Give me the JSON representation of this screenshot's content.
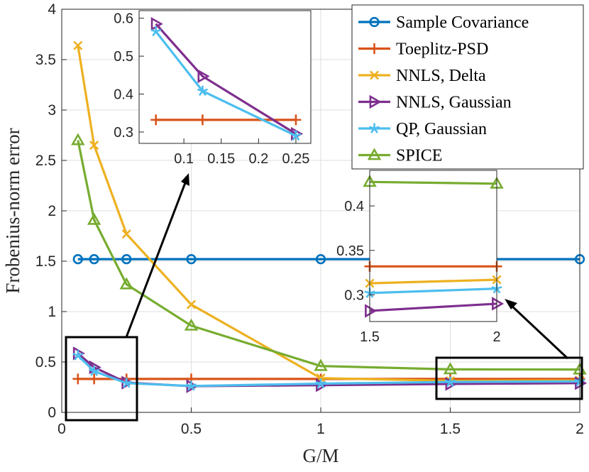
{
  "chart_data": {
    "type": "line",
    "xlabel": "G/M",
    "ylabel": "Frobenius-norm error",
    "xlim": [
      0,
      2
    ],
    "ylim": [
      0,
      4
    ],
    "xticks": [
      "0",
      "0.5",
      "1",
      "1.5",
      "2"
    ],
    "yticks": [
      "0",
      "0.5",
      "1",
      "1.5",
      "2",
      "2.5",
      "3",
      "3.5",
      "4"
    ],
    "grid": true,
    "legend_position": "top-right",
    "x": [
      0.0625,
      0.125,
      0.25,
      0.5,
      1,
      1.5,
      2
    ],
    "series": [
      {
        "name": "Sample Covariance",
        "color": "#0072BD",
        "marker": "circle",
        "values": [
          1.52,
          1.52,
          1.52,
          1.52,
          1.52,
          1.52,
          1.52
        ]
      },
      {
        "name": "Toeplitz-PSD",
        "color": "#D95319",
        "marker": "plus",
        "values": [
          0.332,
          0.332,
          0.332,
          0.332,
          0.332,
          0.332,
          0.332
        ]
      },
      {
        "name": "NNLS, Delta",
        "color": "#EDB120",
        "marker": "x",
        "values": [
          3.64,
          2.65,
          1.77,
          1.07,
          0.34,
          0.313,
          0.317
        ]
      },
      {
        "name": "NNLS, Gaussian",
        "color": "#7E2F8E",
        "marker": "triangle-right",
        "values": [
          0.585,
          0.447,
          0.295,
          0.26,
          0.27,
          0.282,
          0.29
        ]
      },
      {
        "name": "QP, Gaussian",
        "color": "#4DBEEE",
        "marker": "star",
        "values": [
          0.565,
          0.408,
          0.29,
          0.262,
          0.285,
          0.302,
          0.307
        ]
      },
      {
        "name": "SPICE",
        "color": "#77AC30",
        "marker": "triangle-up",
        "values": [
          2.7,
          1.91,
          1.27,
          0.86,
          0.46,
          0.427,
          0.425
        ]
      }
    ],
    "insets": [
      {
        "xlim": [
          0.04,
          0.27
        ],
        "ylim": [
          0.27,
          0.62
        ],
        "xticks": [
          "0.1",
          "0.15",
          "0.2",
          "0.25"
        ],
        "yticks": [
          "0.3",
          "0.4",
          "0.5",
          "0.6"
        ],
        "x_range": [
          0.0625,
          0.25
        ],
        "series_shown": [
          "Toeplitz-PSD",
          "NNLS, Gaussian",
          "QP, Gaussian"
        ]
      },
      {
        "xlim": [
          1.5,
          2
        ],
        "ylim": [
          0.27,
          0.44
        ],
        "xticks": [
          "1.5",
          "2"
        ],
        "yticks": [
          "0.3",
          "0.35",
          "0.4"
        ],
        "x_range": [
          1.5,
          2
        ],
        "series_shown": [
          "Toeplitz-PSD",
          "NNLS, Delta",
          "NNLS, Gaussian",
          "QP, Gaussian",
          "SPICE"
        ]
      }
    ]
  }
}
